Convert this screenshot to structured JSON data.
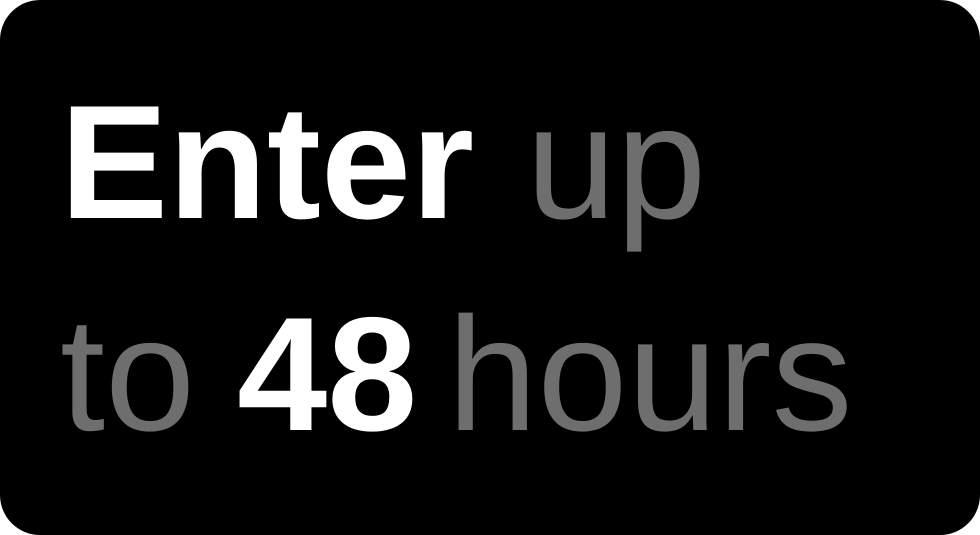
{
  "promo": {
    "line1": {
      "emphasis": "Enter",
      "rest": "up"
    },
    "line2": {
      "lead": "to",
      "emphasis": "48",
      "rest": "hours"
    }
  },
  "colors": {
    "background": "#000000",
    "emphasis_text": "#ffffff",
    "muted_text": "#6e6e6e"
  }
}
